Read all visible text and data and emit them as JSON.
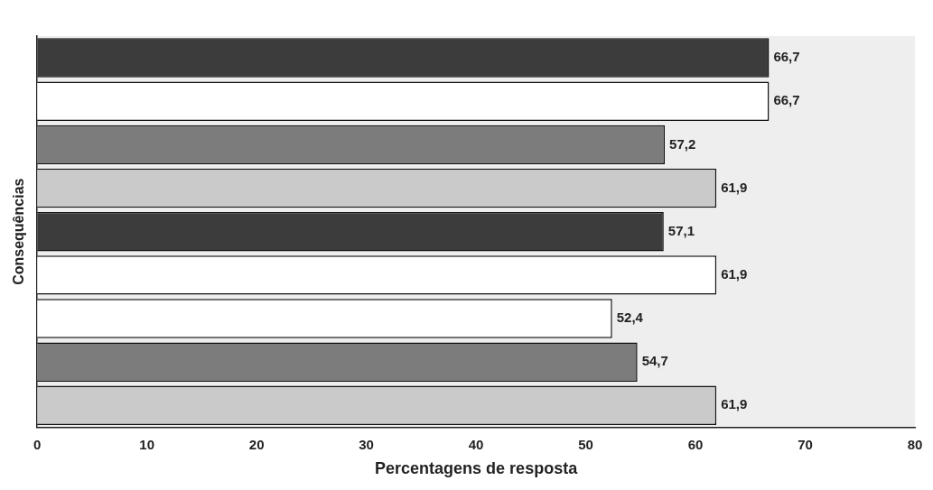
{
  "chart_data": {
    "type": "bar",
    "orientation": "horizontal",
    "xlabel": "Percentagens de resposta",
    "ylabel": "Consequências",
    "categories": [
      null,
      null,
      null,
      null,
      null,
      null,
      null,
      null,
      null
    ],
    "values": [
      66.7,
      66.7,
      57.2,
      61.9,
      57.1,
      61.9,
      52.4,
      54.7,
      61.9
    ],
    "colors": [
      "#3c3c3c",
      "#ffffff",
      "#7c7c7c",
      "#cacaca",
      "#3c3c3c",
      "#ffffff",
      "#ffffff",
      "#7c7c7c",
      "#cacaca"
    ],
    "value_labels": [
      "66,7",
      "66,7",
      "57,2",
      "61,9",
      "57,1",
      "61,9",
      "52,4",
      "54,7",
      "61,9"
    ],
    "xlim": [
      0,
      80
    ],
    "xticks": [
      0,
      10,
      20,
      30,
      40,
      50,
      60,
      70,
      80
    ],
    "grid": false,
    "legend": false
  }
}
